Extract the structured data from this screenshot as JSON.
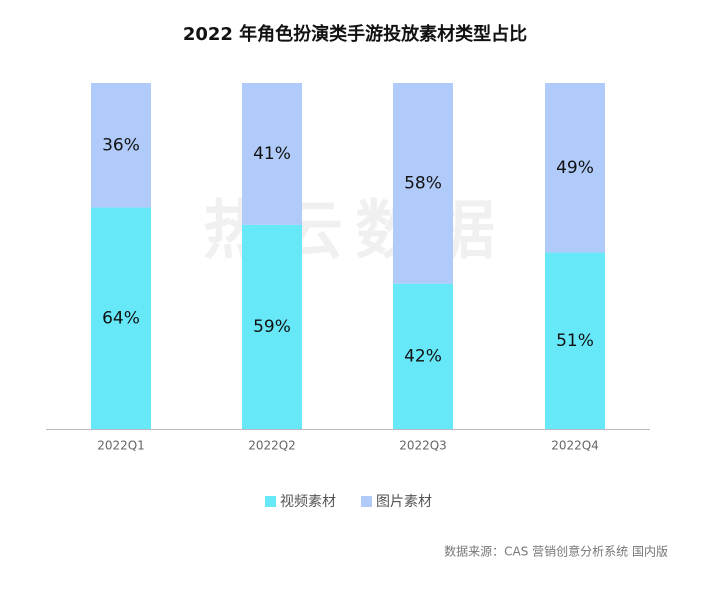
{
  "chart_data": {
    "type": "stacked_bar",
    "title": "2022 年角色扮演类手游投放素材类型占比",
    "categories": [
      "2022Q1",
      "2022Q2",
      "2022Q3",
      "2022Q4"
    ],
    "series": [
      {
        "name": "视频素材",
        "color": "#67e8f9",
        "values": [
          64,
          59,
          42,
          51
        ],
        "value_labels": [
          "64%",
          "59%",
          "42%",
          "51%"
        ]
      },
      {
        "name": "图片素材",
        "color": "#b0cbf9",
        "values": [
          36,
          41,
          58,
          49
        ],
        "value_labels": [
          "36%",
          "41%",
          "58%",
          "49%"
        ]
      }
    ],
    "watermark": "热云数据",
    "source": "数据来源：CAS 营销创意分析系统 国内版"
  }
}
